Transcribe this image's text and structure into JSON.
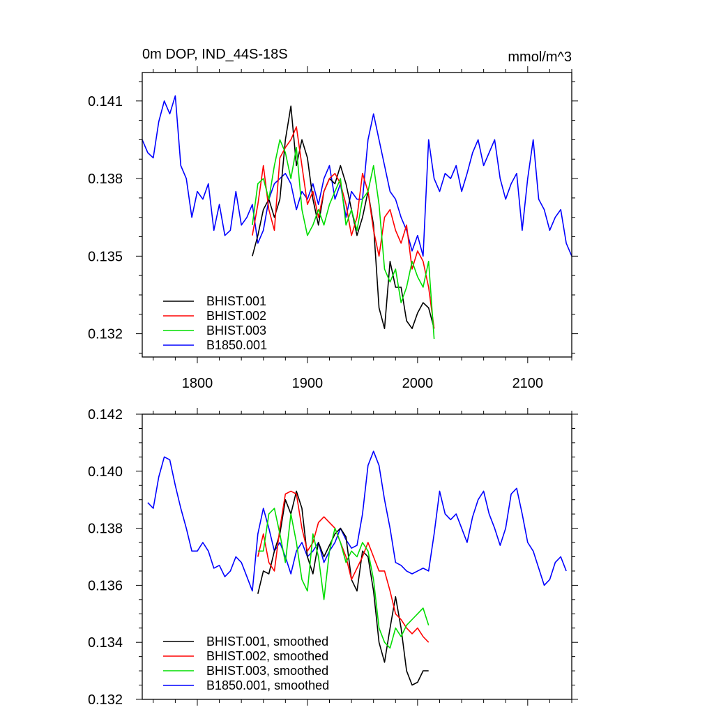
{
  "page": {
    "title_left": "0m DOP, IND_44S-18S",
    "units": "mmol/m^3"
  },
  "colors": {
    "BHIST.001": "#000000",
    "BHIST.002": "#ff0000",
    "BHIST.003": "#00dd00",
    "B1850.001": "#0000ff"
  },
  "chart_data": [
    {
      "type": "line",
      "title": "0m DOP, IND_44S-18S",
      "units": "mmol/m^3",
      "xlim": [
        1750,
        2140
      ],
      "ylim": [
        0.1311,
        0.1421
      ],
      "x_ticks": [
        1800,
        1900,
        2000,
        2100
      ],
      "x_tick_labels": [
        "1800",
        "1900",
        "2000",
        "2100"
      ],
      "y_ticks": [
        0.132,
        0.135,
        0.138,
        0.141
      ],
      "y_tick_labels": [
        "0.132",
        "0.135",
        "0.138",
        "0.141"
      ],
      "legend": [
        "BHIST.001",
        "BHIST.002",
        "BHIST.003",
        "B1850.001"
      ],
      "legend_placement": "bottom-left",
      "series": [
        {
          "name": "B1850.001",
          "x": [
            1750,
            1755,
            1760,
            1765,
            1770,
            1775,
            1780,
            1785,
            1790,
            1795,
            1800,
            1805,
            1810,
            1815,
            1820,
            1825,
            1830,
            1835,
            1840,
            1845,
            1850,
            1855,
            1860,
            1865,
            1870,
            1875,
            1880,
            1885,
            1890,
            1895,
            1900,
            1905,
            1910,
            1915,
            1920,
            1925,
            1930,
            1935,
            1940,
            1945,
            1950,
            1955,
            1960,
            1965,
            1970,
            1975,
            1980,
            1985,
            1990,
            1995,
            2000,
            2005,
            2010,
            2015,
            2020,
            2025,
            2030,
            2035,
            2040,
            2045,
            2050,
            2055,
            2060,
            2065,
            2070,
            2075,
            2080,
            2085,
            2090,
            2095,
            2100,
            2105,
            2110,
            2115,
            2120,
            2125,
            2130,
            2135,
            2140
          ],
          "values": [
            0.1395,
            0.139,
            0.1388,
            0.1402,
            0.141,
            0.1405,
            0.1412,
            0.1385,
            0.138,
            0.1365,
            0.1375,
            0.1372,
            0.1378,
            0.136,
            0.137,
            0.1358,
            0.136,
            0.1375,
            0.1362,
            0.1365,
            0.137,
            0.1355,
            0.136,
            0.1372,
            0.1378,
            0.138,
            0.1382,
            0.1378,
            0.1368,
            0.1375,
            0.1372,
            0.1378,
            0.137,
            0.138,
            0.1385,
            0.1372,
            0.1378,
            0.1365,
            0.1375,
            0.1372,
            0.1372,
            0.1395,
            0.1405,
            0.1395,
            0.1385,
            0.1375,
            0.1372,
            0.1365,
            0.136,
            0.1352,
            0.1358,
            0.135,
            0.1395,
            0.138,
            0.1375,
            0.1382,
            0.138,
            0.1385,
            0.1375,
            0.1382,
            0.139,
            0.1395,
            0.1385,
            0.139,
            0.1395,
            0.138,
            0.1372,
            0.1378,
            0.1382,
            0.136,
            0.138,
            0.1395,
            0.1372,
            0.1368,
            0.136,
            0.1365,
            0.1368,
            0.1355,
            0.135
          ]
        },
        {
          "name": "BHIST.001",
          "x": [
            1850,
            1855,
            1860,
            1865,
            1870,
            1875,
            1880,
            1885,
            1890,
            1895,
            1900,
            1905,
            1910,
            1915,
            1920,
            1925,
            1930,
            1935,
            1940,
            1945,
            1950,
            1955,
            1960,
            1965,
            1970,
            1975,
            1980,
            1985,
            1990,
            1995,
            2000,
            2005,
            2010,
            2015
          ],
          "values": [
            0.135,
            0.1358,
            0.1368,
            0.1372,
            0.1365,
            0.1372,
            0.1395,
            0.1408,
            0.1385,
            0.1395,
            0.1388,
            0.1372,
            0.1362,
            0.1375,
            0.138,
            0.1378,
            0.1385,
            0.1378,
            0.1368,
            0.1358,
            0.1365,
            0.1375,
            0.1362,
            0.133,
            0.1322,
            0.1348,
            0.1338,
            0.1338,
            0.1325,
            0.1322,
            0.1328,
            0.1332,
            0.133,
            0.1322
          ]
        },
        {
          "name": "BHIST.002",
          "x": [
            1850,
            1855,
            1860,
            1865,
            1870,
            1875,
            1880,
            1885,
            1890,
            1895,
            1900,
            1905,
            1910,
            1915,
            1920,
            1925,
            1930,
            1935,
            1940,
            1945,
            1950,
            1955,
            1960,
            1965,
            1970,
            1975,
            1980,
            1985,
            1990,
            1995,
            2000,
            2005,
            2010,
            2015
          ],
          "values": [
            0.1358,
            0.137,
            0.1385,
            0.1368,
            0.136,
            0.1388,
            0.1392,
            0.1395,
            0.14,
            0.1385,
            0.137,
            0.1375,
            0.1365,
            0.1375,
            0.138,
            0.1382,
            0.1378,
            0.137,
            0.1358,
            0.1365,
            0.1382,
            0.1375,
            0.136,
            0.135,
            0.1365,
            0.1368,
            0.136,
            0.1355,
            0.1362,
            0.1345,
            0.1352,
            0.1348,
            0.1338,
            0.1322
          ]
        },
        {
          "name": "BHIST.003",
          "x": [
            1850,
            1855,
            1860,
            1865,
            1870,
            1875,
            1880,
            1885,
            1890,
            1895,
            1900,
            1905,
            1910,
            1915,
            1920,
            1925,
            1930,
            1935,
            1940,
            1945,
            1950,
            1955,
            1960,
            1965,
            1970,
            1975,
            1980,
            1985,
            1990,
            1995,
            2000,
            2005,
            2010,
            2015
          ],
          "values": [
            0.1362,
            0.1378,
            0.138,
            0.1372,
            0.1385,
            0.1395,
            0.139,
            0.138,
            0.1392,
            0.1368,
            0.1358,
            0.1362,
            0.1368,
            0.1362,
            0.137,
            0.1375,
            0.138,
            0.1362,
            0.1368,
            0.136,
            0.1372,
            0.1375,
            0.1385,
            0.137,
            0.1345,
            0.134,
            0.1345,
            0.1332,
            0.1338,
            0.1348,
            0.1342,
            0.1338,
            0.1348,
            0.1318
          ]
        }
      ]
    },
    {
      "type": "line",
      "title": "",
      "xlim": [
        1750,
        2140
      ],
      "ylim": [
        0.132,
        0.142
      ],
      "x_ticks": [
        1800,
        1900,
        2000,
        2100
      ],
      "y_ticks": [
        0.132,
        0.134,
        0.136,
        0.138,
        0.14,
        0.142
      ],
      "y_tick_labels": [
        "0.132",
        "0.134",
        "0.136",
        "0.138",
        "0.140",
        "0.142"
      ],
      "legend": [
        "BHIST.001, smoothed",
        "BHIST.002, smoothed",
        "BHIST.003, smoothed",
        "B1850.001, smoothed"
      ],
      "legend_placement": "bottom-left",
      "series": [
        {
          "name": "B1850.001, smoothed",
          "x": [
            1755,
            1760,
            1765,
            1770,
            1775,
            1780,
            1785,
            1790,
            1795,
            1800,
            1805,
            1810,
            1815,
            1820,
            1825,
            1830,
            1835,
            1840,
            1845,
            1850,
            1855,
            1860,
            1865,
            1870,
            1875,
            1880,
            1885,
            1890,
            1895,
            1900,
            1905,
            1910,
            1915,
            1920,
            1925,
            1930,
            1935,
            1940,
            1945,
            1950,
            1955,
            1960,
            1965,
            1970,
            1975,
            1980,
            1985,
            1990,
            1995,
            2000,
            2005,
            2010,
            2015,
            2020,
            2025,
            2030,
            2035,
            2040,
            2045,
            2050,
            2055,
            2060,
            2065,
            2070,
            2075,
            2080,
            2085,
            2090,
            2095,
            2100,
            2105,
            2110,
            2115,
            2120,
            2125,
            2130,
            2135
          ],
          "values": [
            0.1389,
            0.1387,
            0.1398,
            0.1405,
            0.1404,
            0.1395,
            0.1387,
            0.138,
            0.1372,
            0.1372,
            0.1375,
            0.1372,
            0.1366,
            0.1367,
            0.1363,
            0.1365,
            0.137,
            0.1368,
            0.1363,
            0.1358,
            0.1378,
            0.1387,
            0.138,
            0.1372,
            0.1375,
            0.137,
            0.1364,
            0.1372,
            0.1375,
            0.137,
            0.1372,
            0.1375,
            0.1368,
            0.1372,
            0.1375,
            0.138,
            0.1376,
            0.1373,
            0.1374,
            0.1385,
            0.1402,
            0.1407,
            0.1402,
            0.139,
            0.138,
            0.1368,
            0.1367,
            0.1365,
            0.1364,
            0.1365,
            0.1366,
            0.1365,
            0.1378,
            0.1393,
            0.1385,
            0.1383,
            0.1385,
            0.138,
            0.1375,
            0.1384,
            0.139,
            0.1393,
            0.1385,
            0.138,
            0.1374,
            0.138,
            0.1392,
            0.1394,
            0.1385,
            0.1375,
            0.1372,
            0.1366,
            0.136,
            0.1362,
            0.1368,
            0.137,
            0.1365
          ]
        },
        {
          "name": "BHIST.001, smoothed",
          "x": [
            1855,
            1860,
            1865,
            1870,
            1875,
            1880,
            1885,
            1890,
            1895,
            1900,
            1905,
            1910,
            1915,
            1920,
            1925,
            1930,
            1935,
            1940,
            1945,
            1950,
            1955,
            1960,
            1965,
            1970,
            1975,
            1980,
            1985,
            1990,
            1995,
            2000,
            2005,
            2010
          ],
          "values": [
            0.1357,
            0.1365,
            0.1364,
            0.1372,
            0.1378,
            0.139,
            0.1385,
            0.1393,
            0.1387,
            0.137,
            0.1364,
            0.1375,
            0.137,
            0.1374,
            0.1378,
            0.138,
            0.1377,
            0.1362,
            0.1358,
            0.1372,
            0.137,
            0.1358,
            0.134,
            0.1333,
            0.1345,
            0.1356,
            0.1345,
            0.133,
            0.1325,
            0.1326,
            0.133,
            0.133
          ]
        },
        {
          "name": "BHIST.002, smoothed",
          "x": [
            1855,
            1860,
            1865,
            1870,
            1875,
            1880,
            1885,
            1890,
            1895,
            1900,
            1905,
            1910,
            1915,
            1920,
            1925,
            1930,
            1935,
            1940,
            1945,
            1950,
            1955,
            1960,
            1965,
            1970,
            1975,
            1980,
            1985,
            1990,
            1995,
            2000,
            2005,
            2010
          ],
          "values": [
            0.137,
            0.1378,
            0.1368,
            0.1365,
            0.138,
            0.1392,
            0.1393,
            0.1392,
            0.138,
            0.1372,
            0.1375,
            0.1382,
            0.1384,
            0.1382,
            0.138,
            0.1375,
            0.137,
            0.1362,
            0.1366,
            0.137,
            0.1375,
            0.137,
            0.1365,
            0.1365,
            0.1358,
            0.135,
            0.1348,
            0.1345,
            0.1343,
            0.1345,
            0.1342,
            0.134
          ]
        },
        {
          "name": "BHIST.003, smoothed",
          "x": [
            1855,
            1860,
            1865,
            1870,
            1875,
            1880,
            1885,
            1890,
            1895,
            1900,
            1905,
            1910,
            1915,
            1920,
            1925,
            1930,
            1935,
            1940,
            1945,
            1950,
            1955,
            1960,
            1965,
            1970,
            1975,
            1980,
            1985,
            1990,
            1995,
            2000,
            2005,
            2010
          ],
          "values": [
            0.1372,
            0.1372,
            0.1385,
            0.1387,
            0.1378,
            0.1368,
            0.1385,
            0.1375,
            0.1362,
            0.1358,
            0.1378,
            0.137,
            0.1355,
            0.1372,
            0.138,
            0.1375,
            0.1368,
            0.1372,
            0.137,
            0.1375,
            0.1372,
            0.1362,
            0.1345,
            0.134,
            0.1338,
            0.1345,
            0.1342,
            0.1346,
            0.1348,
            0.135,
            0.1352,
            0.1346
          ]
        }
      ]
    }
  ]
}
